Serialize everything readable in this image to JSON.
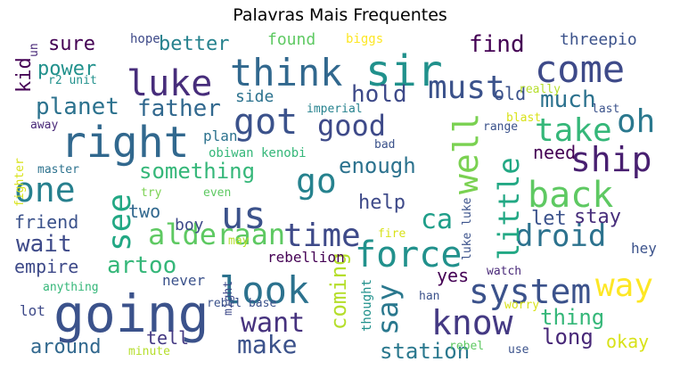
{
  "chart_data": {
    "type": "wordcloud",
    "title": "Palavras Mais Frequentes",
    "colormap": "viridis",
    "background": "#ffffff",
    "words": [
      {
        "text": "going",
        "weight": 1.0,
        "color": "#3b528b"
      },
      {
        "text": "right",
        "weight": 0.95,
        "color": "#31688e"
      },
      {
        "text": "sir",
        "weight": 0.9,
        "color": "#21918c"
      },
      {
        "text": "come",
        "weight": 0.88,
        "color": "#3e4a89"
      },
      {
        "text": "think",
        "weight": 0.87,
        "color": "#31688e"
      },
      {
        "text": "luke",
        "weight": 0.8,
        "color": "#472d7b"
      },
      {
        "text": "look",
        "weight": 0.82,
        "color": "#2c728e"
      },
      {
        "text": "us",
        "weight": 0.8,
        "color": "#3b528b"
      },
      {
        "text": "back",
        "weight": 0.8,
        "color": "#5ec962"
      },
      {
        "text": "ship",
        "weight": 0.78,
        "color": "#481f70"
      },
      {
        "text": "system",
        "weight": 0.74,
        "color": "#3b528b"
      },
      {
        "text": "know",
        "weight": 0.74,
        "color": "#443983"
      },
      {
        "text": "force",
        "weight": 0.75,
        "color": "#21918c"
      },
      {
        "text": "well",
        "weight": 0.72,
        "color": "#7ad151"
      },
      {
        "text": "got",
        "weight": 0.72,
        "color": "#3b528b"
      },
      {
        "text": "one",
        "weight": 0.72,
        "color": "#27808e"
      },
      {
        "text": "must",
        "weight": 0.66,
        "color": "#3b528b"
      },
      {
        "text": "time",
        "weight": 0.66,
        "color": "#3e4a89"
      },
      {
        "text": "take",
        "weight": 0.66,
        "color": "#35b779"
      },
      {
        "text": "oh",
        "weight": 0.64,
        "color": "#2a788e"
      },
      {
        "text": "droid",
        "weight": 0.66,
        "color": "#2c728e"
      },
      {
        "text": "way",
        "weight": 0.64,
        "color": "#fde725"
      },
      {
        "text": "go",
        "weight": 0.66,
        "color": "#26828e"
      },
      {
        "text": "see",
        "weight": 0.64,
        "color": "#22a884"
      },
      {
        "text": "say",
        "weight": 0.6,
        "color": "#2a788e"
      },
      {
        "text": "alderaan",
        "weight": 0.6,
        "color": "#5ec962"
      },
      {
        "text": "want",
        "weight": 0.58,
        "color": "#46327e"
      },
      {
        "text": "good",
        "weight": 0.58,
        "color": "#3e4a89"
      },
      {
        "text": "little",
        "weight": 0.58,
        "color": "#22a884"
      },
      {
        "text": "ca",
        "weight": 0.56,
        "color": "#1f9e89"
      },
      {
        "text": "make",
        "weight": 0.52,
        "color": "#3b528b"
      },
      {
        "text": "hold",
        "weight": 0.5,
        "color": "#3e4a89"
      },
      {
        "text": "find",
        "weight": 0.5,
        "color": "#440154"
      },
      {
        "text": "much",
        "weight": 0.5,
        "color": "#2c728e"
      },
      {
        "text": "father",
        "weight": 0.48,
        "color": "#31688e"
      },
      {
        "text": "planet",
        "weight": 0.48,
        "color": "#2c728e"
      },
      {
        "text": "wait",
        "weight": 0.48,
        "color": "#3e4a89"
      },
      {
        "text": "artoo",
        "weight": 0.48,
        "color": "#35b779"
      },
      {
        "text": "something",
        "weight": 0.46,
        "color": "#35b779"
      },
      {
        "text": "enough",
        "weight": 0.46,
        "color": "#2c728e"
      },
      {
        "text": "coming",
        "weight": 0.46,
        "color": "#b5de2b"
      },
      {
        "text": "thing",
        "weight": 0.46,
        "color": "#35b779"
      },
      {
        "text": "station",
        "weight": 0.44,
        "color": "#2a788e"
      },
      {
        "text": "long",
        "weight": 0.44,
        "color": "#482878"
      },
      {
        "text": "power",
        "weight": 0.42,
        "color": "#21918c"
      },
      {
        "text": "sure",
        "weight": 0.42,
        "color": "#440154"
      },
      {
        "text": "better",
        "weight": 0.4,
        "color": "#26828e"
      },
      {
        "text": "kid",
        "weight": 0.42,
        "color": "#440154"
      },
      {
        "text": "help",
        "weight": 0.42,
        "color": "#3e4a89"
      },
      {
        "text": "let",
        "weight": 0.42,
        "color": "#3b528b"
      },
      {
        "text": "stay",
        "weight": 0.42,
        "color": "#472d7b"
      },
      {
        "text": "old",
        "weight": 0.42,
        "color": "#3b528b"
      },
      {
        "text": "friend",
        "weight": 0.4,
        "color": "#3b528b"
      },
      {
        "text": "two",
        "weight": 0.4,
        "color": "#31688e"
      },
      {
        "text": "around",
        "weight": 0.4,
        "color": "#31688e"
      },
      {
        "text": "tell",
        "weight": 0.38,
        "color": "#443983"
      },
      {
        "text": "okay",
        "weight": 0.38,
        "color": "#d8e219"
      },
      {
        "text": "need",
        "weight": 0.38,
        "color": "#440154"
      },
      {
        "text": "empire",
        "weight": 0.36,
        "color": "#3e4a89"
      },
      {
        "text": "yes",
        "weight": 0.36,
        "color": "#440154"
      },
      {
        "text": "side",
        "weight": 0.36,
        "color": "#2c728e"
      },
      {
        "text": "threepio",
        "weight": 0.32,
        "color": "#3b528b"
      },
      {
        "text": "found",
        "weight": 0.32,
        "color": "#5ec962"
      },
      {
        "text": "boy",
        "weight": 0.32,
        "color": "#3e4a89"
      },
      {
        "text": "hey",
        "weight": 0.32,
        "color": "#3b528b"
      },
      {
        "text": "plan",
        "weight": 0.3,
        "color": "#2c728e"
      },
      {
        "text": "rebellion",
        "weight": 0.28,
        "color": "#440154"
      },
      {
        "text": "never",
        "weight": 0.28,
        "color": "#3b528b"
      },
      {
        "text": "lot",
        "weight": 0.3,
        "color": "#3e4a89"
      },
      {
        "text": "hope",
        "weight": 0.24,
        "color": "#3e4a89"
      },
      {
        "text": "biggs",
        "weight": 0.24,
        "color": "#fde725"
      },
      {
        "text": "r2 unit",
        "weight": 0.22,
        "color": "#21918c"
      },
      {
        "text": "un",
        "weight": 0.22,
        "color": "#482878"
      },
      {
        "text": "imperial",
        "weight": 0.22,
        "color": "#26828e"
      },
      {
        "text": "really",
        "weight": 0.22,
        "color": "#b5de2b"
      },
      {
        "text": "last",
        "weight": 0.22,
        "color": "#3b528b"
      },
      {
        "text": "blast",
        "weight": 0.22,
        "color": "#d8e219"
      },
      {
        "text": "away",
        "weight": 0.22,
        "color": "#482878"
      },
      {
        "text": "fighter",
        "weight": 0.22,
        "color": "#d8e219"
      },
      {
        "text": "range",
        "weight": 0.22,
        "color": "#3b528b"
      },
      {
        "text": "bad",
        "weight": 0.22,
        "color": "#3b528b"
      },
      {
        "text": "obiwan kenobi",
        "weight": 0.22,
        "color": "#35b779"
      },
      {
        "text": "master",
        "weight": 0.22,
        "color": "#2c728e"
      },
      {
        "text": "try",
        "weight": 0.22,
        "color": "#7ad151"
      },
      {
        "text": "even",
        "weight": 0.22,
        "color": "#5ec962"
      },
      {
        "text": "luke luke",
        "weight": 0.22,
        "color": "#3b528b"
      },
      {
        "text": "may",
        "weight": 0.2,
        "color": "#b5de2b"
      },
      {
        "text": "fire",
        "weight": 0.2,
        "color": "#d8e219"
      },
      {
        "text": "watch",
        "weight": 0.22,
        "color": "#482878"
      },
      {
        "text": "han",
        "weight": 0.22,
        "color": "#3b528b"
      },
      {
        "text": "anything",
        "weight": 0.22,
        "color": "#35b779"
      },
      {
        "text": "rebel base",
        "weight": 0.22,
        "color": "#3b528b"
      },
      {
        "text": "might",
        "weight": 0.2,
        "color": "#3e4a89"
      },
      {
        "text": "thought",
        "weight": 0.24,
        "color": "#21918c"
      },
      {
        "text": "worry",
        "weight": 0.22,
        "color": "#d8e219"
      },
      {
        "text": "minute",
        "weight": 0.2,
        "color": "#b5de2b"
      },
      {
        "text": "rebel",
        "weight": 0.2,
        "color": "#5ec962"
      },
      {
        "text": "use",
        "weight": 0.2,
        "color": "#3b528b"
      }
    ]
  }
}
